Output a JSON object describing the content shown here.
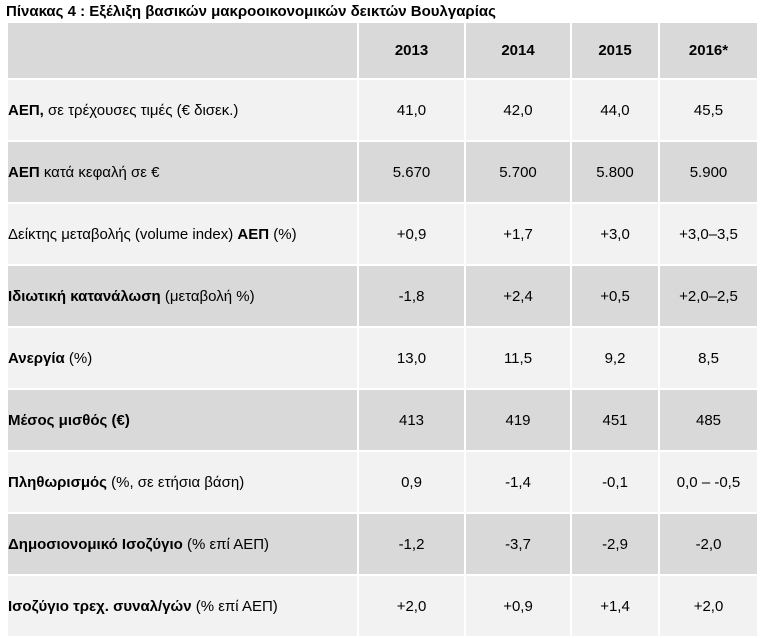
{
  "caption": "Πίνακας 4 : Εξέλιξη βασικών μακροοικονομικών δεικτών Βουλγαρίας",
  "years": [
    "2013",
    "2014",
    "2015",
    "2016*"
  ],
  "rows": [
    {
      "label_bold": "ΑΕΠ,",
      "label_rest": " σε τρέχουσες τιμές (€ δισεκ.)",
      "values": [
        "41,0",
        "42,0",
        "44,0",
        "45,5"
      ]
    },
    {
      "label_bold": "ΑΕΠ",
      "label_rest": " κατά κεφαλή σε €",
      "values": [
        "5.670",
        "5.700",
        "5.800",
        "5.900"
      ]
    },
    {
      "label_pre": "Δείκτης μεταβολής (volume index) ",
      "label_bold": "ΑΕΠ",
      "label_rest": " (%)",
      "values": [
        "+0,9",
        "+1,7",
        "+3,0",
        "+3,0–3,5"
      ]
    },
    {
      "label_bold": "Ιδιωτική κατανάλωση",
      "label_rest": " (μεταβολή %)",
      "values": [
        "-1,8",
        "+2,4",
        "+0,5",
        "+2,0–2,5"
      ]
    },
    {
      "label_bold": "Ανεργία",
      "label_rest": " (%)",
      "values": [
        "13,0",
        "11,5",
        "9,2",
        "8,5"
      ]
    },
    {
      "label_bold": "Μέσος μισθός (€)",
      "label_rest": "",
      "values": [
        "413",
        "419",
        "451",
        "485"
      ]
    },
    {
      "label_bold": "Πληθωρισμός",
      "label_rest": " (%, σε ετήσια βάση)",
      "values": [
        "0,9",
        "-1,4",
        "-0,1",
        "0,0 – -0,5"
      ]
    },
    {
      "label_bold": "Δημοσιονομικό Ισοζύγιο",
      "label_rest": " (% επί  ΑΕΠ)",
      "values": [
        "-1,2",
        "-3,7",
        "-2,9",
        "-2,0"
      ]
    },
    {
      "label_bold": "Ισοζύγιο τρεχ. συναλ/γών",
      "label_rest": " (% επί  ΑΕΠ)",
      "values": [
        "+2,0",
        "+0,9",
        "+1,4",
        "+2,0"
      ]
    }
  ]
}
